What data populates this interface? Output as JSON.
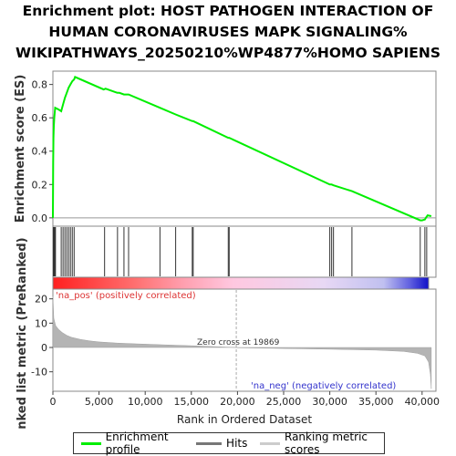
{
  "title_lines": [
    "Enrichment plot: HOST PATHOGEN INTERACTION OF",
    "HUMAN CORONAVIRUSES MAPK SIGNALING%",
    "WIKIPATHWAYS_20250210%WP4877%HOMO SAPIENS"
  ],
  "chart_data": {
    "type": "line",
    "panels": [
      "enrichment-score",
      "hits",
      "ranked-metric"
    ],
    "xlabel": "Rank in Ordered Dataset",
    "xlim": [
      0,
      41500
    ],
    "x_ticks": [
      0,
      5000,
      10000,
      15000,
      20000,
      25000,
      30000,
      35000,
      40000
    ],
    "x_tick_labels": [
      "0",
      "5,000",
      "10,000",
      "15,000",
      "20,000",
      "25,000",
      "30,000",
      "35,000",
      "40,000"
    ],
    "es_panel": {
      "ylabel": "Enrichment score (ES)",
      "ylim": [
        -0.05,
        0.88
      ],
      "y_ticks": [
        0.0,
        0.2,
        0.4,
        0.6,
        0.8
      ],
      "y_tick_labels": [
        "0.0",
        "0.2",
        "0.4",
        "0.6",
        "0.8"
      ],
      "series": [
        {
          "name": "Enrichment profile",
          "color": "#00ee00",
          "x": [
            0,
            30,
            60,
            100,
            150,
            200,
            250,
            600,
            900,
            1100,
            1300,
            1500,
            1700,
            1900,
            2100,
            2300,
            2400,
            5500,
            5700,
            7000,
            7200,
            7700,
            8200,
            11600,
            13300,
            15100,
            15200,
            19000,
            19100,
            30000,
            30200,
            30400,
            32400,
            39800,
            40000,
            40300,
            40400,
            40600,
            41000
          ],
          "values": [
            0.0,
            0.33,
            0.48,
            0.55,
            0.6,
            0.63,
            0.66,
            0.65,
            0.64,
            0.68,
            0.72,
            0.75,
            0.78,
            0.8,
            0.82,
            0.83,
            0.845,
            0.77,
            0.775,
            0.75,
            0.75,
            0.74,
            0.74,
            0.66,
            0.62,
            0.58,
            0.58,
            0.48,
            0.48,
            0.2,
            0.2,
            0.195,
            0.16,
            -0.015,
            -0.015,
            -0.01,
            0.0,
            0.015,
            0.01
          ]
        }
      ]
    },
    "hits": {
      "name": "Hits",
      "positions": [
        50,
        120,
        200,
        280,
        900,
        1100,
        1300,
        1500,
        1700,
        1900,
        2100,
        2300,
        5600,
        7000,
        7700,
        8200,
        11600,
        13300,
        15100,
        15200,
        19000,
        19100,
        30000,
        30200,
        30400,
        32400,
        39800,
        40300,
        40500
      ]
    },
    "metric_panel": {
      "name": "Ranking metric scores",
      "ylabel": "Ranked list metric (PreRanked)",
      "ylim": [
        -18,
        24
      ],
      "y_ticks": [
        20,
        10,
        0,
        -10
      ],
      "y_tick_labels": [
        "20",
        "10",
        "0",
        "-10"
      ],
      "x": [
        0,
        100,
        300,
        600,
        1000,
        1500,
        2000,
        3000,
        4000,
        5000,
        7000,
        9000,
        12000,
        15000,
        19869,
        20000,
        25000,
        30000,
        35000,
        38000,
        39500,
        40300,
        40700,
        40900,
        41000
      ],
      "values": [
        21,
        12,
        9,
        7.5,
        6.2,
        5,
        4.2,
        3.3,
        2.7,
        2.3,
        1.8,
        1.5,
        1.1,
        0.7,
        0,
        -0.1,
        -0.4,
        -0.7,
        -1.1,
        -1.6,
        -2.4,
        -3.5,
        -6,
        -11,
        -17
      ],
      "zero_cross_label": "Zero cross at 19869",
      "zero_cross_rank": 19869,
      "pos_label": "'na_pos' (positively correlated)",
      "neg_label": "'na_neg' (negatively correlated)"
    }
  },
  "legend": {
    "items": [
      {
        "label": "Enrichment profile",
        "color": "#00ee00"
      },
      {
        "label": "Hits",
        "color": "#777777"
      },
      {
        "label": "Ranking metric scores",
        "color": "#cccccc"
      }
    ]
  }
}
